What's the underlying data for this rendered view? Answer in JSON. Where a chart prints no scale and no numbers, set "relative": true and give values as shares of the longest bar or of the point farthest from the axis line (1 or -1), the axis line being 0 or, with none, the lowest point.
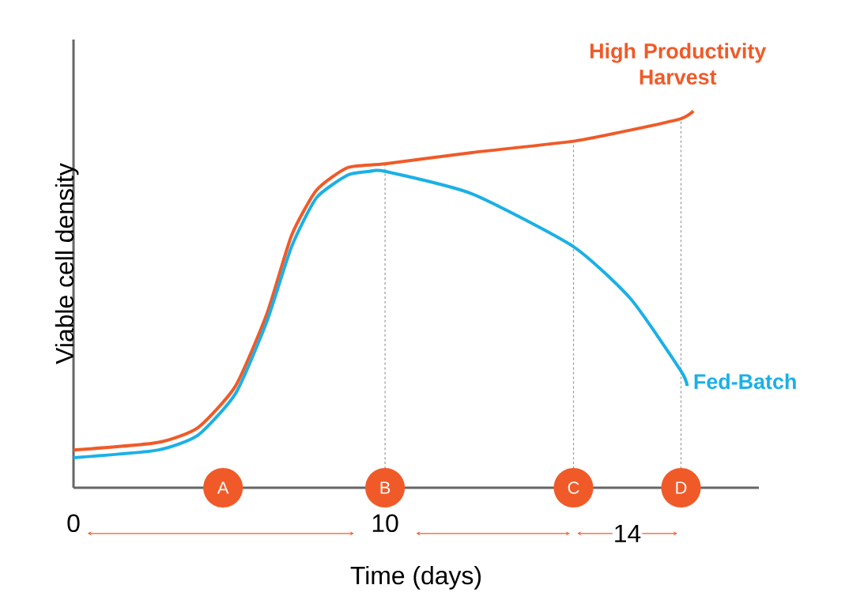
{
  "chart_data": {
    "type": "line",
    "relative": true,
    "xlabel": "Time (days)",
    "ylabel": "Viable cell density",
    "xlim": [
      0,
      22
    ],
    "xticks": [
      0,
      10
    ],
    "tick_labels": "x",
    "marker": "none",
    "line_style": "solid",
    "series": [
      {
        "name": "High Productivity Harvest",
        "color": "#f05a28",
        "x": [
          0,
          2.7,
          4.0,
          5.2,
          6.2,
          7.0,
          7.8,
          8.8,
          10,
          12.8,
          16.05,
          17.9,
          19.5,
          19.9
        ],
        "values": [
          0.1,
          0.12,
          0.16,
          0.27,
          0.46,
          0.67,
          0.79,
          0.85,
          0.86,
          0.89,
          0.92,
          0.95,
          0.98,
          1.0
        ]
      },
      {
        "name": "Fed-Batch",
        "color": "#1bb0e6",
        "x": [
          0,
          2.7,
          4.0,
          5.2,
          6.2,
          7.0,
          7.8,
          8.8,
          9.5,
          10,
          12.8,
          16.05,
          17.9,
          19.5,
          19.7
        ],
        "values": [
          0.08,
          0.1,
          0.14,
          0.25,
          0.44,
          0.64,
          0.77,
          0.83,
          0.84,
          0.84,
          0.78,
          0.64,
          0.5,
          0.31,
          0.27
        ]
      }
    ],
    "ref_lines": [
      {
        "axis": "x",
        "value": 10,
        "label": "B",
        "color": "#999999",
        "line_style": "dashed"
      },
      {
        "axis": "x",
        "value": 16.05,
        "label": "C",
        "color": "#999999",
        "line_style": "dashed"
      },
      {
        "axis": "x",
        "value": 19.5,
        "label": "D",
        "color": "#999999",
        "line_style": "dashed"
      }
    ],
    "annotations": [
      "A",
      "14"
    ]
  }
}
